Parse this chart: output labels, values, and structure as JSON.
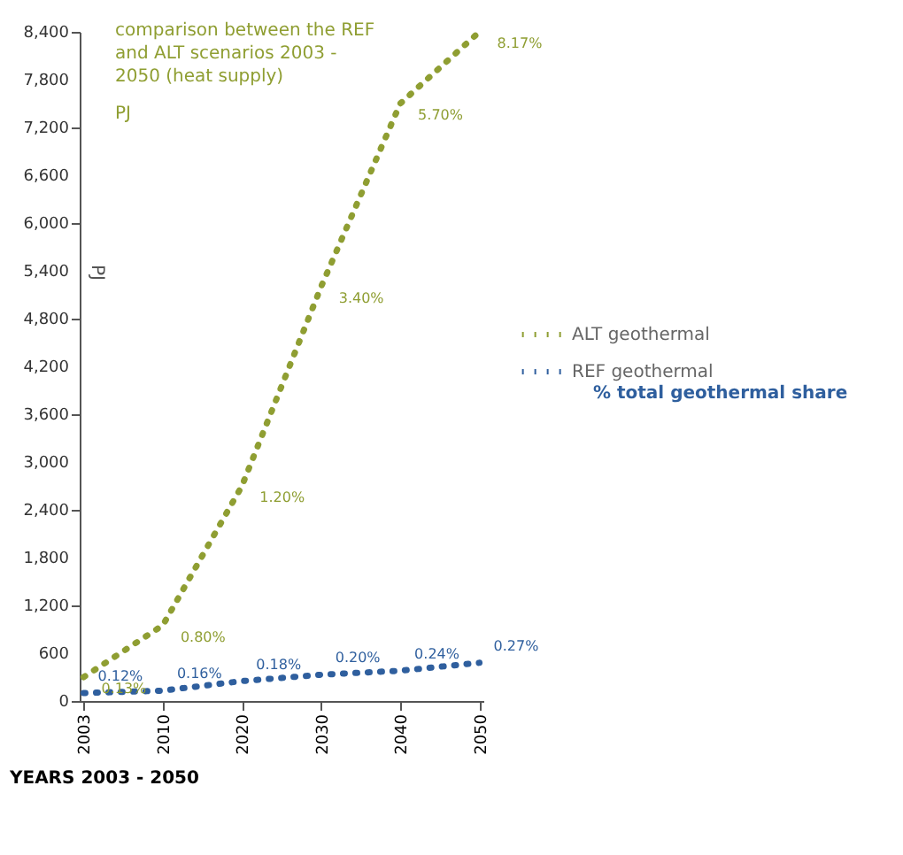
{
  "chart_data": {
    "type": "line",
    "title": "comparison between the REF and ALT scenarios 2003 - 2050 (heat supply)",
    "subtitle": "PJ",
    "xlabel": "YEARS 2003 - 2050",
    "ylabel": "PJ",
    "categories": [
      "2003",
      "2010",
      "2020",
      "2030",
      "2040",
      "2050"
    ],
    "series": [
      {
        "name": "ALT geothermal",
        "color": "#8f9e32",
        "values": [
          300,
          950,
          2700,
          5200,
          7500,
          8400
        ]
      },
      {
        "name": "REF geothermal",
        "color": "#2f5f9e",
        "values": [
          100,
          130,
          250,
          330,
          380,
          480
        ]
      }
    ],
    "annotations": [
      "% total geothermal share",
      {
        "text": "0.13%",
        "x": "2003",
        "y": 300
      },
      {
        "text": "0.80%",
        "x": "2010",
        "y": 950
      },
      {
        "text": "1.20%",
        "x": "2020",
        "y": 2700
      },
      {
        "text": "3.40%",
        "x": "2030",
        "y": 5200
      },
      {
        "text": "5.70%",
        "x": "2040",
        "y": 7500
      },
      {
        "text": "8.17%",
        "x": "2050",
        "y": 8400
      },
      {
        "text": "0.12%",
        "x": "2003",
        "y": 100
      },
      {
        "text": "0.16%",
        "x": "2010",
        "y": 130
      },
      {
        "text": "0.18%",
        "x": "2020",
        "y": 250
      },
      {
        "text": "0.20%",
        "x": "2030",
        "y": 330
      },
      {
        "text": "0.24%",
        "x": "2040",
        "y": 380
      },
      {
        "text": "0.27%",
        "x": "2050",
        "y": 480
      }
    ],
    "ylim": [
      0,
      8400
    ],
    "yticks": [
      0,
      600,
      {
        "value": 1200,
        "label": "1,200"
      },
      {
        "value": 1800,
        "label": "1,800"
      },
      {
        "value": 2400,
        "label": "2,400"
      },
      {
        "value": 3000,
        "label": "3,000"
      },
      {
        "value": 3600,
        "label": "3,600"
      },
      {
        "value": 4200,
        "label": "4,200"
      },
      {
        "value": 4800,
        "label": "4,800"
      },
      {
        "value": 5400,
        "label": "5,400"
      },
      {
        "value": 6000,
        "label": "6,000"
      },
      {
        "value": 6600,
        "label": "6,600"
      },
      {
        "value": 7200,
        "label": "7,200"
      },
      {
        "value": 7800,
        "label": "7,800"
      },
      {
        "value": 8400,
        "label": "8,400"
      }
    ],
    "legend": "right",
    "line_style": "dotted",
    "marker": "none",
    "grid": false
  }
}
